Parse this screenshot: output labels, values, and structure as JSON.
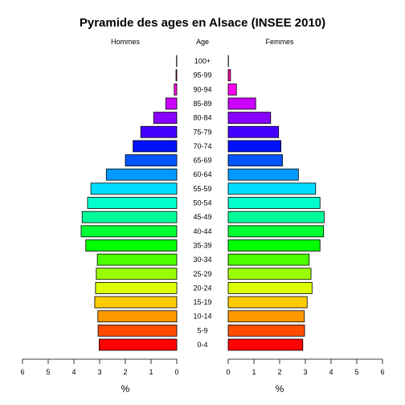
{
  "chart_data": {
    "type": "bar",
    "title": "Pyramide des ages en Alsace (INSEE 2010)",
    "left_header": "Hommes",
    "center_header": "Age",
    "right_header": "Femmes",
    "xlabel_left": "%",
    "xlabel_right": "%",
    "xlim": [
      0,
      6
    ],
    "xticks": [
      "0",
      "1",
      "2",
      "3",
      "4",
      "5",
      "6"
    ],
    "categories": [
      "0-4",
      "5-9",
      "10-14",
      "15-19",
      "20-24",
      "25-29",
      "30-34",
      "35-39",
      "40-44",
      "45-49",
      "50-54",
      "55-59",
      "60-64",
      "65-69",
      "70-74",
      "75-79",
      "80-84",
      "85-89",
      "90-94",
      "95-99",
      "100+"
    ],
    "colors": [
      "#ff0000",
      "#ff4d00",
      "#ff9900",
      "#ffcc00",
      "#ddff00",
      "#99ff00",
      "#4dff00",
      "#00ff00",
      "#00ff33",
      "#00ff99",
      "#00ffcc",
      "#00ddff",
      "#0099ff",
      "#0055ff",
      "#0011ff",
      "#4400ff",
      "#8800ff",
      "#cc00ff",
      "#ff00ee",
      "#ff00aa",
      "#ff0066"
    ],
    "series": [
      {
        "name": "Hommes",
        "values": [
          3.02,
          3.06,
          3.07,
          3.19,
          3.16,
          3.13,
          3.09,
          3.54,
          3.72,
          3.68,
          3.47,
          3.34,
          2.74,
          2.0,
          1.7,
          1.4,
          0.9,
          0.43,
          0.1,
          0.03,
          0.01
        ]
      },
      {
        "name": "Femmes",
        "values": [
          2.9,
          2.97,
          2.96,
          3.07,
          3.26,
          3.22,
          3.15,
          3.57,
          3.71,
          3.73,
          3.57,
          3.4,
          2.73,
          2.11,
          2.05,
          1.96,
          1.65,
          1.07,
          0.32,
          0.09,
          0.01
        ]
      }
    ]
  }
}
